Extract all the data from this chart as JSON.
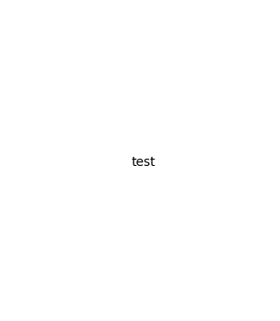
{
  "background_color": "#ffffff",
  "line_color": "#1a1a2e",
  "line_width": 1.6,
  "dbo": 0.012,
  "figsize": [
    3.08,
    3.52
  ],
  "dpi": 100,
  "xlim": [
    0,
    308
  ],
  "ylim": [
    0,
    352
  ]
}
